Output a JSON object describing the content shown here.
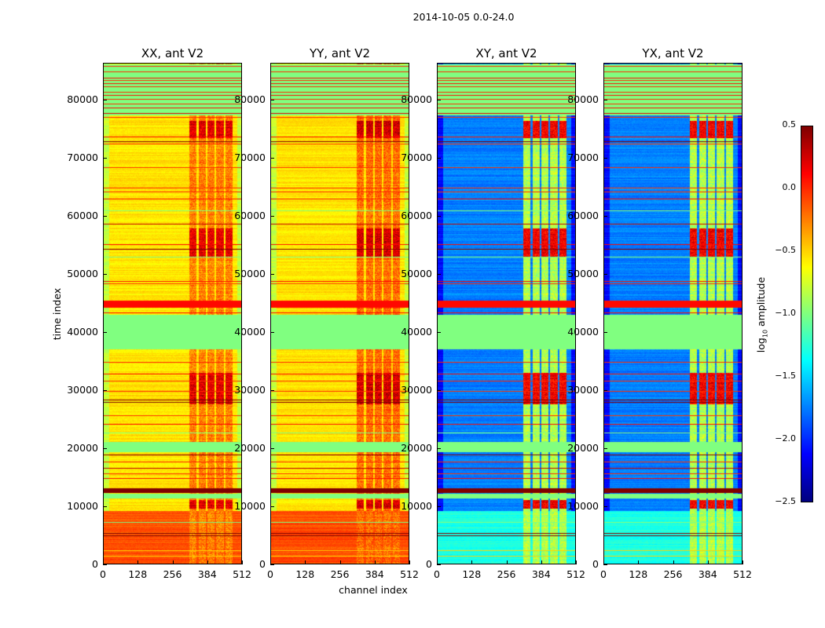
{
  "chart_data": {
    "type": "heatmap",
    "suptitle": "2014-10-05 0.0-24.0",
    "xlabel": "channel index",
    "ylabel": "time index",
    "xlim": [
      0,
      512
    ],
    "ylim": [
      0,
      86400
    ],
    "xticks": [
      "0",
      "128",
      "256",
      "384",
      "512"
    ],
    "yticks": [
      "0",
      "10000",
      "20000",
      "30000",
      "40000",
      "50000",
      "60000",
      "70000",
      "80000"
    ],
    "colormap": "jet",
    "colorbar": {
      "label_prefix": "log",
      "label_sub": "10",
      "label_suffix": " amplitude",
      "range": [
        -2.5,
        0.5
      ],
      "ticks": [
        "0.5",
        "0.0",
        "−0.5",
        "−1.0",
        "−1.5",
        "−2.0",
        "−2.5"
      ]
    },
    "panels": [
      {
        "title": "XX, ant V2",
        "base": -0.55,
        "edge": -0.8,
        "rfi": -0.25,
        "rfi_hot": 0.2,
        "early": -0.1
      },
      {
        "title": "YY, ant V2",
        "base": -0.55,
        "edge": -0.8,
        "rfi": -0.2,
        "rfi_hot": 0.25,
        "early": -0.1
      },
      {
        "title": "XY, ant V2",
        "base": -1.75,
        "edge": -2.1,
        "rfi": -0.85,
        "rfi_hot": 0.15,
        "early": -1.3
      },
      {
        "title": "YX, ant V2",
        "base": -1.75,
        "edge": -2.1,
        "rfi": -0.85,
        "rfi_hot": 0.15,
        "early": -1.3
      }
    ],
    "rfi_channels": [
      [
        318,
        345
      ],
      [
        352,
        378
      ],
      [
        385,
        410
      ],
      [
        418,
        445
      ],
      [
        452,
        478
      ]
    ],
    "rfi_hot_times": [
      [
        27500,
        33000
      ],
      [
        53000,
        58000
      ],
      [
        9500,
        11000
      ],
      [
        73500,
        76500
      ]
    ],
    "flagged_blocks": [
      {
        "t0": 37000,
        "t1": 43000,
        "value": -1.0
      },
      {
        "t0": 19200,
        "t1": 21000,
        "value": -1.0
      },
      {
        "t0": 77500,
        "t1": 86400,
        "value": -1.0
      },
      {
        "t0": 11200,
        "t1": 12000,
        "value": -1.0
      },
      {
        "t0": 44200,
        "t1": 45500,
        "value": 0.1
      },
      {
        "t0": 12200,
        "t1": 13000,
        "value": 0.5
      }
    ],
    "early_block": [
      0,
      9000
    ],
    "lines": [
      {
        "t": 86000,
        "value": 0.0
      },
      {
        "t": 85000,
        "value": 0.0
      },
      {
        "t": 84000,
        "value": 0.1
      },
      {
        "t": 83500,
        "value": 0.0
      },
      {
        "t": 83000,
        "value": 0.1
      },
      {
        "t": 82500,
        "value": 0.0
      },
      {
        "t": 81500,
        "value": 0.0
      },
      {
        "t": 81000,
        "value": 0.1
      },
      {
        "t": 80300,
        "value": 0.0
      },
      {
        "t": 79500,
        "value": 0.0
      },
      {
        "t": 78800,
        "value": 0.1
      },
      {
        "t": 77800,
        "value": 0.2
      },
      {
        "t": 77200,
        "value": 0.0
      },
      {
        "t": 73800,
        "value": 0.1
      },
      {
        "t": 73000,
        "value": 0.5
      },
      {
        "t": 72500,
        "value": 0.0
      },
      {
        "t": 68500,
        "value": 0.0
      },
      {
        "t": 65000,
        "value": 0.0
      },
      {
        "t": 64300,
        "value": 0.0
      },
      {
        "t": 63000,
        "value": 0.1
      },
      {
        "t": 61000,
        "value": -1.0
      },
      {
        "t": 58700,
        "value": 0.3
      },
      {
        "t": 55200,
        "value": 0.1
      },
      {
        "t": 54300,
        "value": 0.5
      },
      {
        "t": 53000,
        "value": -1.0
      },
      {
        "t": 48800,
        "value": 0.1
      },
      {
        "t": 48300,
        "value": 0.0
      },
      {
        "t": 43300,
        "value": 0.1
      },
      {
        "t": 34800,
        "value": 0.0
      },
      {
        "t": 32700,
        "value": 0.1
      },
      {
        "t": 31500,
        "value": 0.0
      },
      {
        "t": 29800,
        "value": 0.0
      },
      {
        "t": 28300,
        "value": 0.5
      },
      {
        "t": 27800,
        "value": 0.5
      },
      {
        "t": 25500,
        "value": 0.0
      },
      {
        "t": 24000,
        "value": 0.1
      },
      {
        "t": 22500,
        "value": -1.0
      },
      {
        "t": 18700,
        "value": 0.5
      },
      {
        "t": 17500,
        "value": 0.0
      },
      {
        "t": 16500,
        "value": 0.3
      },
      {
        "t": 15500,
        "value": 0.0
      },
      {
        "t": 14700,
        "value": 0.1
      },
      {
        "t": 7000,
        "value": -1.0
      },
      {
        "t": 5200,
        "value": 0.5
      },
      {
        "t": 4700,
        "value": 0.5
      },
      {
        "t": 2200,
        "value": -0.5
      },
      {
        "t": 1200,
        "value": -0.5
      }
    ]
  }
}
